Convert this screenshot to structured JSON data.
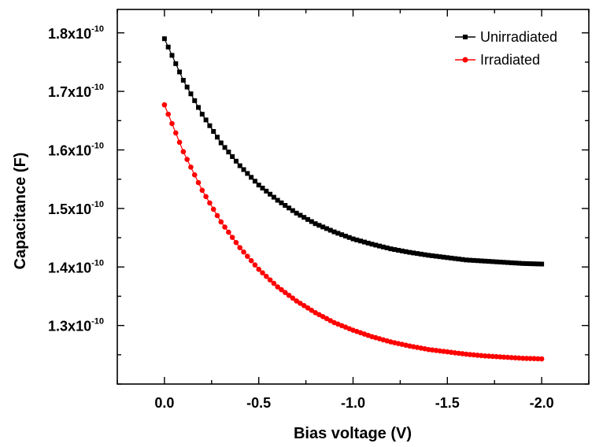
{
  "chart_data": {
    "type": "line",
    "title": "",
    "xlabel": "Bias voltage (V)",
    "ylabel": "Capacitance (F)",
    "xlim": [
      0.25,
      -2.25
    ],
    "ylim": [
      1.2e-10,
      1.84e-10
    ],
    "x_ticks": [
      0.0,
      -0.5,
      -1.0,
      -1.5,
      -2.0
    ],
    "x_tick_labels": [
      "0.0",
      "-0.5",
      "-1.0",
      "-1.5",
      "-2.0"
    ],
    "y_ticks": [
      1.3e-10,
      1.4e-10,
      1.5e-10,
      1.6e-10,
      1.7e-10,
      1.8e-10
    ],
    "y_tick_mantissas": [
      "1.3x10",
      "1.4x10",
      "1.5x10",
      "1.6x10",
      "1.7x10",
      "1.8x10"
    ],
    "y_tick_exponent": "-10",
    "grid": false,
    "legend_position": "top-right",
    "series": [
      {
        "name": "Unirradiated",
        "color": "#000000",
        "marker": "square",
        "x": [
          0.0,
          -0.1,
          -0.2,
          -0.3,
          -0.4,
          -0.5,
          -0.6,
          -0.7,
          -0.8,
          -0.9,
          -1.0,
          -1.1,
          -1.2,
          -1.3,
          -1.4,
          -1.5,
          -1.6,
          -1.7,
          -1.8,
          -1.9,
          -2.0
        ],
        "values": [
          1.79e-10,
          1.719e-10,
          1.661e-10,
          1.612e-10,
          1.573e-10,
          1.54e-10,
          1.514e-10,
          1.492e-10,
          1.474e-10,
          1.46e-10,
          1.448e-10,
          1.439e-10,
          1.431e-10,
          1.425e-10,
          1.42e-10,
          1.416e-10,
          1.412e-10,
          1.41e-10,
          1.408e-10,
          1.406e-10,
          1.405e-10
        ]
      },
      {
        "name": "Irradiated",
        "color": "#ff0000",
        "marker": "circle",
        "x": [
          0.0,
          -0.1,
          -0.2,
          -0.3,
          -0.4,
          -0.5,
          -0.6,
          -0.7,
          -0.8,
          -0.9,
          -1.0,
          -1.1,
          -1.2,
          -1.3,
          -1.4,
          -1.5,
          -1.6,
          -1.7,
          -1.8,
          -1.9,
          -2.0
        ],
        "values": [
          1.677e-10,
          1.597e-10,
          1.531e-10,
          1.477e-10,
          1.433e-10,
          1.396e-10,
          1.366e-10,
          1.342e-10,
          1.322e-10,
          1.305e-10,
          1.292e-10,
          1.281e-10,
          1.272e-10,
          1.265e-10,
          1.259e-10,
          1.255e-10,
          1.251e-10,
          1.248e-10,
          1.246e-10,
          1.244e-10,
          1.243e-10
        ]
      }
    ]
  }
}
